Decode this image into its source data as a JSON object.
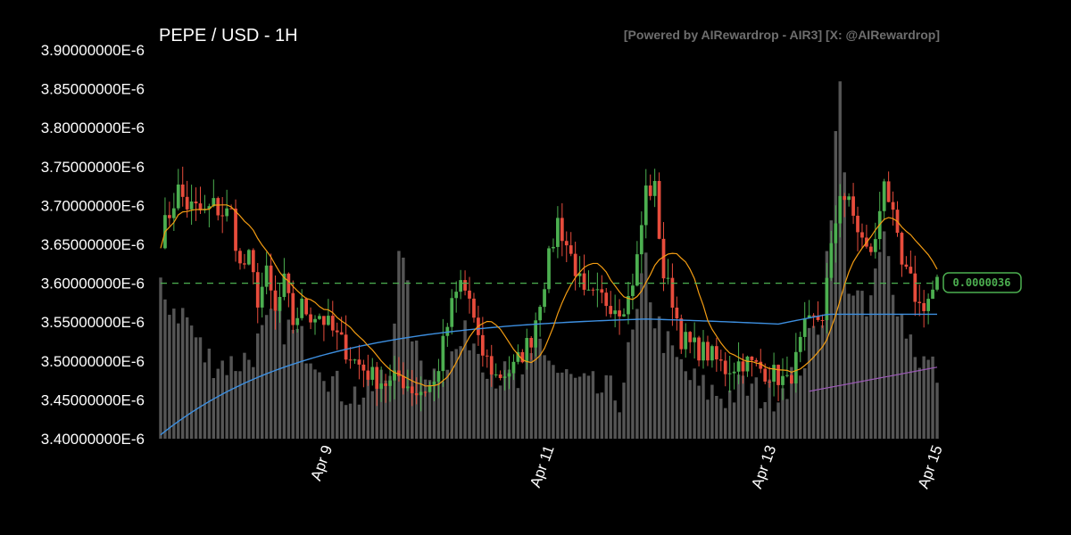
{
  "chart_data": {
    "type": "candlestick",
    "title": "PEPE / USD - 1H",
    "watermark": "[Powered by AIRewardrop - AIR3] [X: @AIRewardrop]",
    "ylim": [
      3.4e-06,
      3.9e-06
    ],
    "yticks": [
      {
        "value": 3.4e-06,
        "label": "3.40000000E-6"
      },
      {
        "value": 3.45e-06,
        "label": "3.45000000E-6"
      },
      {
        "value": 3.5e-06,
        "label": "3.50000000E-6"
      },
      {
        "value": 3.55e-06,
        "label": "3.55000000E-6"
      },
      {
        "value": 3.6e-06,
        "label": "3.60000000E-6"
      },
      {
        "value": 3.65e-06,
        "label": "3.65000000E-6"
      },
      {
        "value": 3.7e-06,
        "label": "3.70000000E-6"
      },
      {
        "value": 3.75e-06,
        "label": "3.75000000E-6"
      },
      {
        "value": 3.8e-06,
        "label": "3.80000000E-6"
      },
      {
        "value": 3.85e-06,
        "label": "3.85000000E-6"
      },
      {
        "value": 3.9e-06,
        "label": "3.90000000E-6"
      }
    ],
    "x_start": "2025-04-08 00:00",
    "x_hours": 168,
    "xticks": [
      {
        "hour": 36,
        "label": "Apr 9"
      },
      {
        "hour": 84,
        "label": "Apr 11"
      },
      {
        "hour": 132,
        "label": "Apr 13"
      },
      {
        "hour": 168,
        "label": "Apr 15"
      }
    ],
    "current_price": 3.6e-06,
    "current_price_label": "0.0000036",
    "grid": false,
    "colors": {
      "up": "#4caf50",
      "down": "#e74c3c",
      "volume": "#555555",
      "ma_short": "#f39c12",
      "ma_long": "#3d8fe0",
      "ma_extra": "#9b59b6",
      "price_line": "#4caf50"
    },
    "keyframes": [
      [
        0,
        3.66
      ],
      [
        2,
        3.69
      ],
      [
        4,
        3.72
      ],
      [
        6,
        3.7
      ],
      [
        10,
        3.69
      ],
      [
        12,
        3.7
      ],
      [
        14,
        3.69
      ],
      [
        16,
        3.69
      ],
      [
        18,
        3.62
      ],
      [
        20,
        3.63
      ],
      [
        22,
        3.58
      ],
      [
        24,
        3.61
      ],
      [
        26,
        3.56
      ],
      [
        28,
        3.6
      ],
      [
        30,
        3.55
      ],
      [
        32,
        3.57
      ],
      [
        34,
        3.56
      ],
      [
        36,
        3.56
      ],
      [
        40,
        3.53
      ],
      [
        44,
        3.5
      ],
      [
        48,
        3.48
      ],
      [
        52,
        3.47
      ],
      [
        54,
        3.48
      ],
      [
        58,
        3.46
      ],
      [
        62,
        3.47
      ],
      [
        64,
        3.52
      ],
      [
        66,
        3.57
      ],
      [
        68,
        3.6
      ],
      [
        70,
        3.58
      ],
      [
        72,
        3.52
      ],
      [
        76,
        3.48
      ],
      [
        80,
        3.49
      ],
      [
        84,
        3.53
      ],
      [
        86,
        3.58
      ],
      [
        88,
        3.63
      ],
      [
        90,
        3.68
      ],
      [
        92,
        3.65
      ],
      [
        94,
        3.62
      ],
      [
        96,
        3.58
      ],
      [
        100,
        3.58
      ],
      [
        104,
        3.57
      ],
      [
        106,
        3.58
      ],
      [
        108,
        3.63
      ],
      [
        110,
        3.72
      ],
      [
        112,
        3.72
      ],
      [
        114,
        3.61
      ],
      [
        116,
        3.58
      ],
      [
        118,
        3.53
      ],
      [
        120,
        3.52
      ],
      [
        124,
        3.51
      ],
      [
        128,
        3.49
      ],
      [
        132,
        3.5
      ],
      [
        136,
        3.49
      ],
      [
        140,
        3.48
      ],
      [
        142,
        3.47
      ],
      [
        144,
        3.5
      ],
      [
        146,
        3.54
      ],
      [
        148,
        3.55
      ],
      [
        150,
        3.56
      ],
      [
        152,
        3.64
      ],
      [
        154,
        3.72
      ],
      [
        156,
        3.7
      ],
      [
        158,
        3.67
      ],
      [
        160,
        3.64
      ],
      [
        162,
        3.65
      ],
      [
        164,
        3.74
      ],
      [
        166,
        3.68
      ],
      [
        168,
        3.62
      ],
      [
        170,
        3.6
      ],
      [
        172,
        3.57
      ],
      [
        174,
        3.58
      ],
      [
        176,
        3.6
      ]
    ],
    "volume_keyframes": [
      [
        0,
        3.58
      ],
      [
        6,
        3.55
      ],
      [
        10,
        3.5
      ],
      [
        16,
        3.49
      ],
      [
        20,
        3.5
      ],
      [
        26,
        3.55
      ],
      [
        30,
        3.53
      ],
      [
        36,
        3.5
      ],
      [
        40,
        3.46
      ],
      [
        46,
        3.45
      ],
      [
        52,
        3.48
      ],
      [
        54,
        3.65
      ],
      [
        58,
        3.5
      ],
      [
        62,
        3.48
      ],
      [
        66,
        3.5
      ],
      [
        70,
        3.53
      ],
      [
        76,
        3.48
      ],
      [
        82,
        3.46
      ],
      [
        86,
        3.52
      ],
      [
        90,
        3.48
      ],
      [
        96,
        3.46
      ],
      [
        104,
        3.45
      ],
      [
        108,
        3.55
      ],
      [
        110,
        3.62
      ],
      [
        112,
        3.55
      ],
      [
        116,
        3.5
      ],
      [
        122,
        3.46
      ],
      [
        128,
        3.45
      ],
      [
        132,
        3.46
      ],
      [
        138,
        3.45
      ],
      [
        142,
        3.47
      ],
      [
        146,
        3.5
      ],
      [
        150,
        3.56
      ],
      [
        152,
        3.7
      ],
      [
        154,
        3.85
      ],
      [
        156,
        3.6
      ],
      [
        160,
        3.55
      ],
      [
        164,
        3.65
      ],
      [
        168,
        3.55
      ],
      [
        172,
        3.5
      ],
      [
        176,
        3.48
      ]
    ],
    "ma_extra_range": [
      147,
      176
    ]
  }
}
